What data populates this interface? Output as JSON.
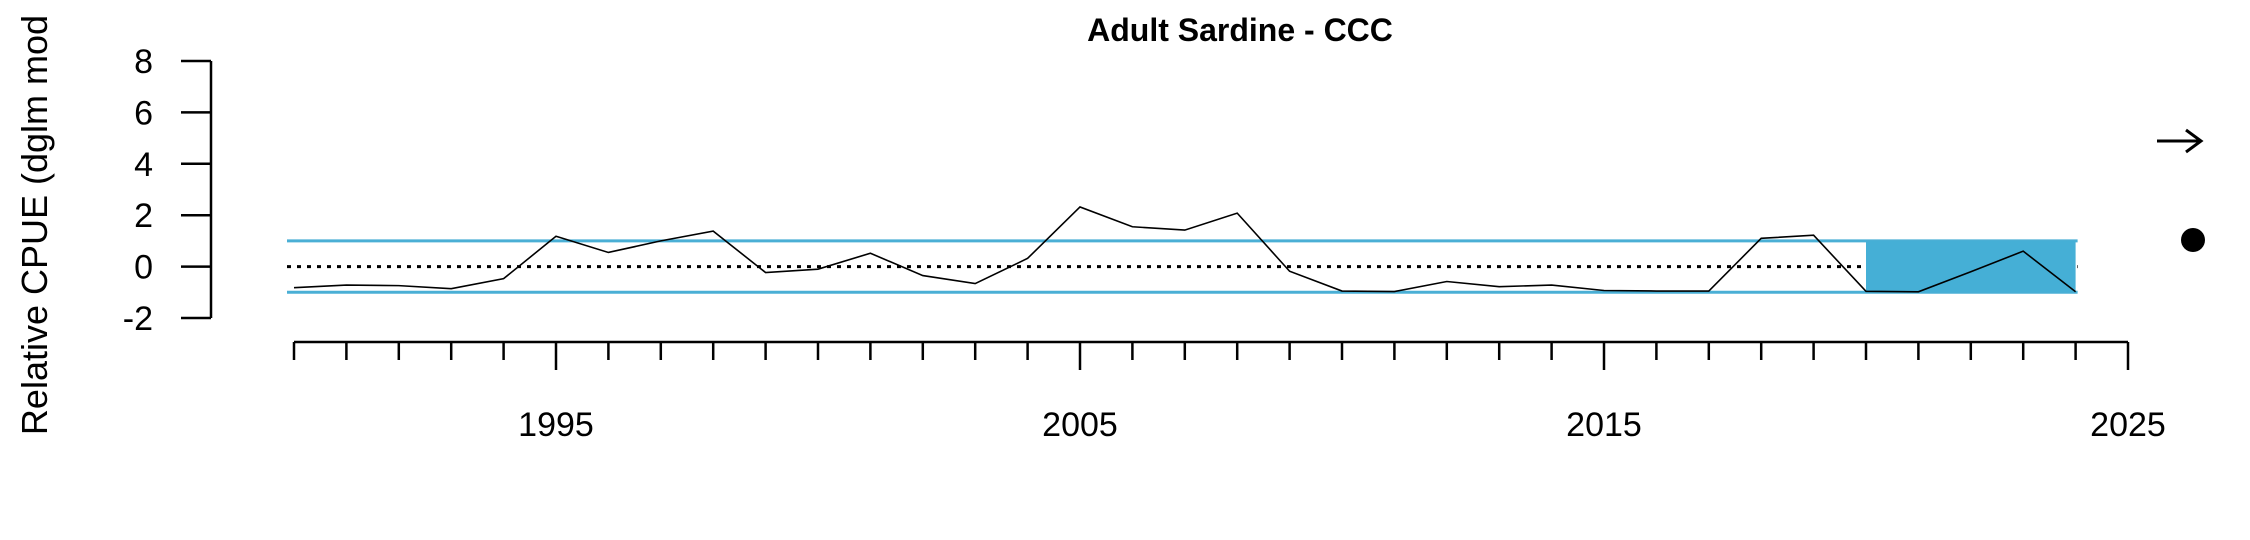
{
  "chart_data": {
    "type": "line",
    "title": "Adult Sardine - CCC",
    "xlabel": "",
    "ylabel": "Relative CPUE (dglm mod",
    "xlim": [
      1990,
      2025
    ],
    "ylim": [
      -2,
      8
    ],
    "y_ticks": [
      8,
      6,
      4,
      2,
      0,
      -2
    ],
    "x_major_ticks": [
      1995,
      2005,
      2015,
      2025
    ],
    "x_minor_tick_start": 1990,
    "x_minor_tick_end": 2025,
    "reference_lines": {
      "mean": 0,
      "upper_sd": 1,
      "lower_sd": -1,
      "mean_style": "dotted",
      "sd_color": "#4AAFD5"
    },
    "highlight_window": {
      "x_start": 2020,
      "x_end": 2024,
      "y_start": -1,
      "y_end": 1,
      "color": "#45AFD6"
    },
    "series": [
      {
        "color": "#000000",
        "x": [
          1990,
          1991,
          1992,
          1993,
          1994,
          1995,
          1996,
          1997,
          1998,
          1999,
          2000,
          2001,
          2002,
          2003,
          2004,
          2005,
          2006,
          2007,
          2008,
          2009,
          2010,
          2011,
          2012,
          2013,
          2014,
          2015,
          2016,
          2017,
          2018,
          2019,
          2020,
          2021,
          2022,
          2023,
          2024
        ],
        "y": [
          -0.82,
          -0.72,
          -0.74,
          -0.86,
          -0.47,
          1.18,
          0.55,
          1.0,
          1.38,
          -0.23,
          -0.1,
          0.52,
          -0.35,
          -0.66,
          0.32,
          2.32,
          1.55,
          1.42,
          2.08,
          -0.18,
          -0.95,
          -0.97,
          -0.58,
          -0.78,
          -0.72,
          -0.93,
          -0.95,
          -0.95,
          1.1,
          1.22,
          -0.96,
          -0.98,
          -0.2,
          0.6,
          -0.98
        ]
      }
    ],
    "trend_indicators": {
      "trend_icon": "right-arrow-icon",
      "mean_icon": "filled-circle-icon"
    },
    "grid": false,
    "legend": "none"
  }
}
